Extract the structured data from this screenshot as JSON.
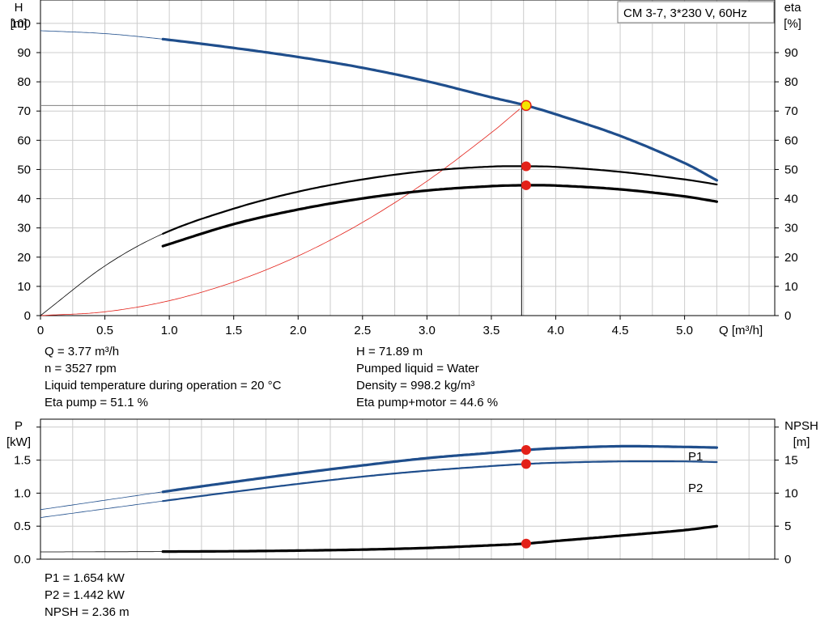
{
  "chart_data": [
    {
      "type": "line",
      "title": "CM 3-7, 3*230 V, 60Hz",
      "xlabel": "Q [m³/h]",
      "ylabel_left": [
        "H",
        "[m]"
      ],
      "ylabel_right": [
        "eta",
        "[%]"
      ],
      "xlim": [
        0,
        5.7
      ],
      "ylim_left": [
        0,
        108
      ],
      "ylim_right": [
        0,
        108
      ],
      "x_ticks": [
        "0",
        "0.5",
        "1.0",
        "1.5",
        "2.0",
        "2.5",
        "3.0",
        "3.5",
        "4.0",
        "4.5",
        "5.0"
      ],
      "y_ticks_left": [
        "0",
        "10",
        "20",
        "30",
        "40",
        "50",
        "60",
        "70",
        "80",
        "90",
        "100"
      ],
      "y_ticks_right": [
        "0",
        "10",
        "20",
        "30",
        "40",
        "50",
        "60",
        "70",
        "80",
        "90"
      ],
      "grid": true,
      "series": [
        {
          "key": "H",
          "axis": "left",
          "color": "#1f4e8c",
          "x": [
            0,
            0.5,
            0.95,
            1.5,
            2.0,
            2.5,
            3.0,
            3.5,
            3.77,
            4.0,
            4.5,
            5.0,
            5.25
          ],
          "y": [
            97.5,
            96.5,
            94.6,
            91.6,
            88.5,
            84.8,
            80.2,
            74.7,
            71.9,
            68.9,
            61.5,
            52.2,
            46.3
          ],
          "extrapolated_below": 0.95
        },
        {
          "key": "eta_pump",
          "axis": "right",
          "color": "#000000",
          "x": [
            0,
            0.5,
            0.95,
            1.5,
            2.0,
            2.5,
            3.0,
            3.5,
            3.77,
            4.0,
            4.5,
            5.0,
            5.25
          ],
          "y": [
            0,
            17.0,
            28.0,
            36.6,
            42.4,
            46.6,
            49.5,
            51.0,
            51.1,
            50.9,
            49.2,
            46.6,
            44.9
          ],
          "extrapolated_below": 0.95
        },
        {
          "key": "eta_pump_motor",
          "axis": "right",
          "color": "#000000",
          "x": [
            0.95,
            1.5,
            2.0,
            2.5,
            3.0,
            3.5,
            3.77,
            4.0,
            4.5,
            5.0,
            5.25
          ],
          "y": [
            23.8,
            31.3,
            36.3,
            40.1,
            42.8,
            44.3,
            44.6,
            44.5,
            43.2,
            40.8,
            39.0
          ]
        }
      ],
      "system_curve": {
        "color": "#e32119",
        "x": [
          0,
          0.5,
          1.0,
          1.5,
          2.0,
          2.5,
          3.0,
          3.5,
          3.72
        ],
        "y": [
          0,
          1.3,
          5.1,
          11.5,
          20.4,
          31.9,
          46.0,
          62.6,
          70.7
        ]
      },
      "duty_point": {
        "x": 3.77,
        "H": 71.89,
        "eta_pump": 51.1,
        "eta_pump_motor": 44.6
      },
      "legend_position": "top-right"
    },
    {
      "type": "line",
      "ylabel_left": [
        "P",
        "[kW]"
      ],
      "ylabel_right": [
        "NPSH",
        "[m]"
      ],
      "xlim": [
        0,
        5.7
      ],
      "ylim_left": [
        0,
        2.12
      ],
      "ylim_right": [
        0,
        21.2
      ],
      "y_ticks_left": [
        "0.0",
        "0.5",
        "1.0",
        "1.5"
      ],
      "y_ticks_right": [
        "0",
        "5",
        "10",
        "15"
      ],
      "grid": true,
      "series": [
        {
          "key": "P1",
          "name": "P1",
          "axis": "left",
          "color": "#1f4e8c",
          "x": [
            0,
            0.95,
            1.5,
            2.0,
            2.5,
            3.0,
            3.5,
            3.77,
            4.0,
            4.5,
            5.0,
            5.25
          ],
          "y": [
            0.75,
            1.02,
            1.17,
            1.3,
            1.42,
            1.53,
            1.61,
            1.654,
            1.68,
            1.71,
            1.7,
            1.69
          ],
          "extrapolated_below": 0.95
        },
        {
          "key": "P2",
          "name": "P2",
          "axis": "left",
          "color": "#1f4e8c",
          "x": [
            0,
            0.95,
            1.5,
            2.0,
            2.5,
            3.0,
            3.5,
            3.77,
            4.0,
            4.5,
            5.0,
            5.25
          ],
          "y": [
            0.63,
            0.88,
            1.02,
            1.14,
            1.25,
            1.34,
            1.41,
            1.442,
            1.46,
            1.48,
            1.48,
            1.47
          ],
          "extrapolated_below": 0.95
        },
        {
          "key": "NPSH",
          "axis": "right",
          "color": "#000000",
          "x": [
            0,
            0.95,
            1.5,
            2.0,
            2.5,
            3.0,
            3.5,
            3.77,
            4.0,
            4.5,
            5.0,
            5.25
          ],
          "y": [
            1.1,
            1.15,
            1.2,
            1.3,
            1.45,
            1.7,
            2.1,
            2.36,
            2.75,
            3.55,
            4.4,
            5.0
          ],
          "extrapolated_below": 0.95
        }
      ],
      "duty_point": {
        "x": 3.77,
        "P1": 1.654,
        "P2": 1.442,
        "NPSH": 2.36
      }
    }
  ],
  "info_top_left": [
    "Q = 3.77 m³/h",
    "n = 3527 rpm",
    "Liquid temperature during operation = 20 °C",
    "Eta pump = 51.1 %"
  ],
  "info_top_right": [
    "H = 71.89 m",
    "Pumped liquid = Water",
    "Density = 998.2 kg/m³",
    "Eta pump+motor = 44.6 %"
  ],
  "info_bottom": [
    "P1 = 1.654 kW",
    "P2 = 1.442 kW",
    "NPSH = 2.36 m"
  ],
  "colors": {
    "curve_blue": "#1f4e8c",
    "duty_point_red": "#e32119",
    "duty_point_marker": "#f5e400",
    "grid": "#cccccc"
  }
}
